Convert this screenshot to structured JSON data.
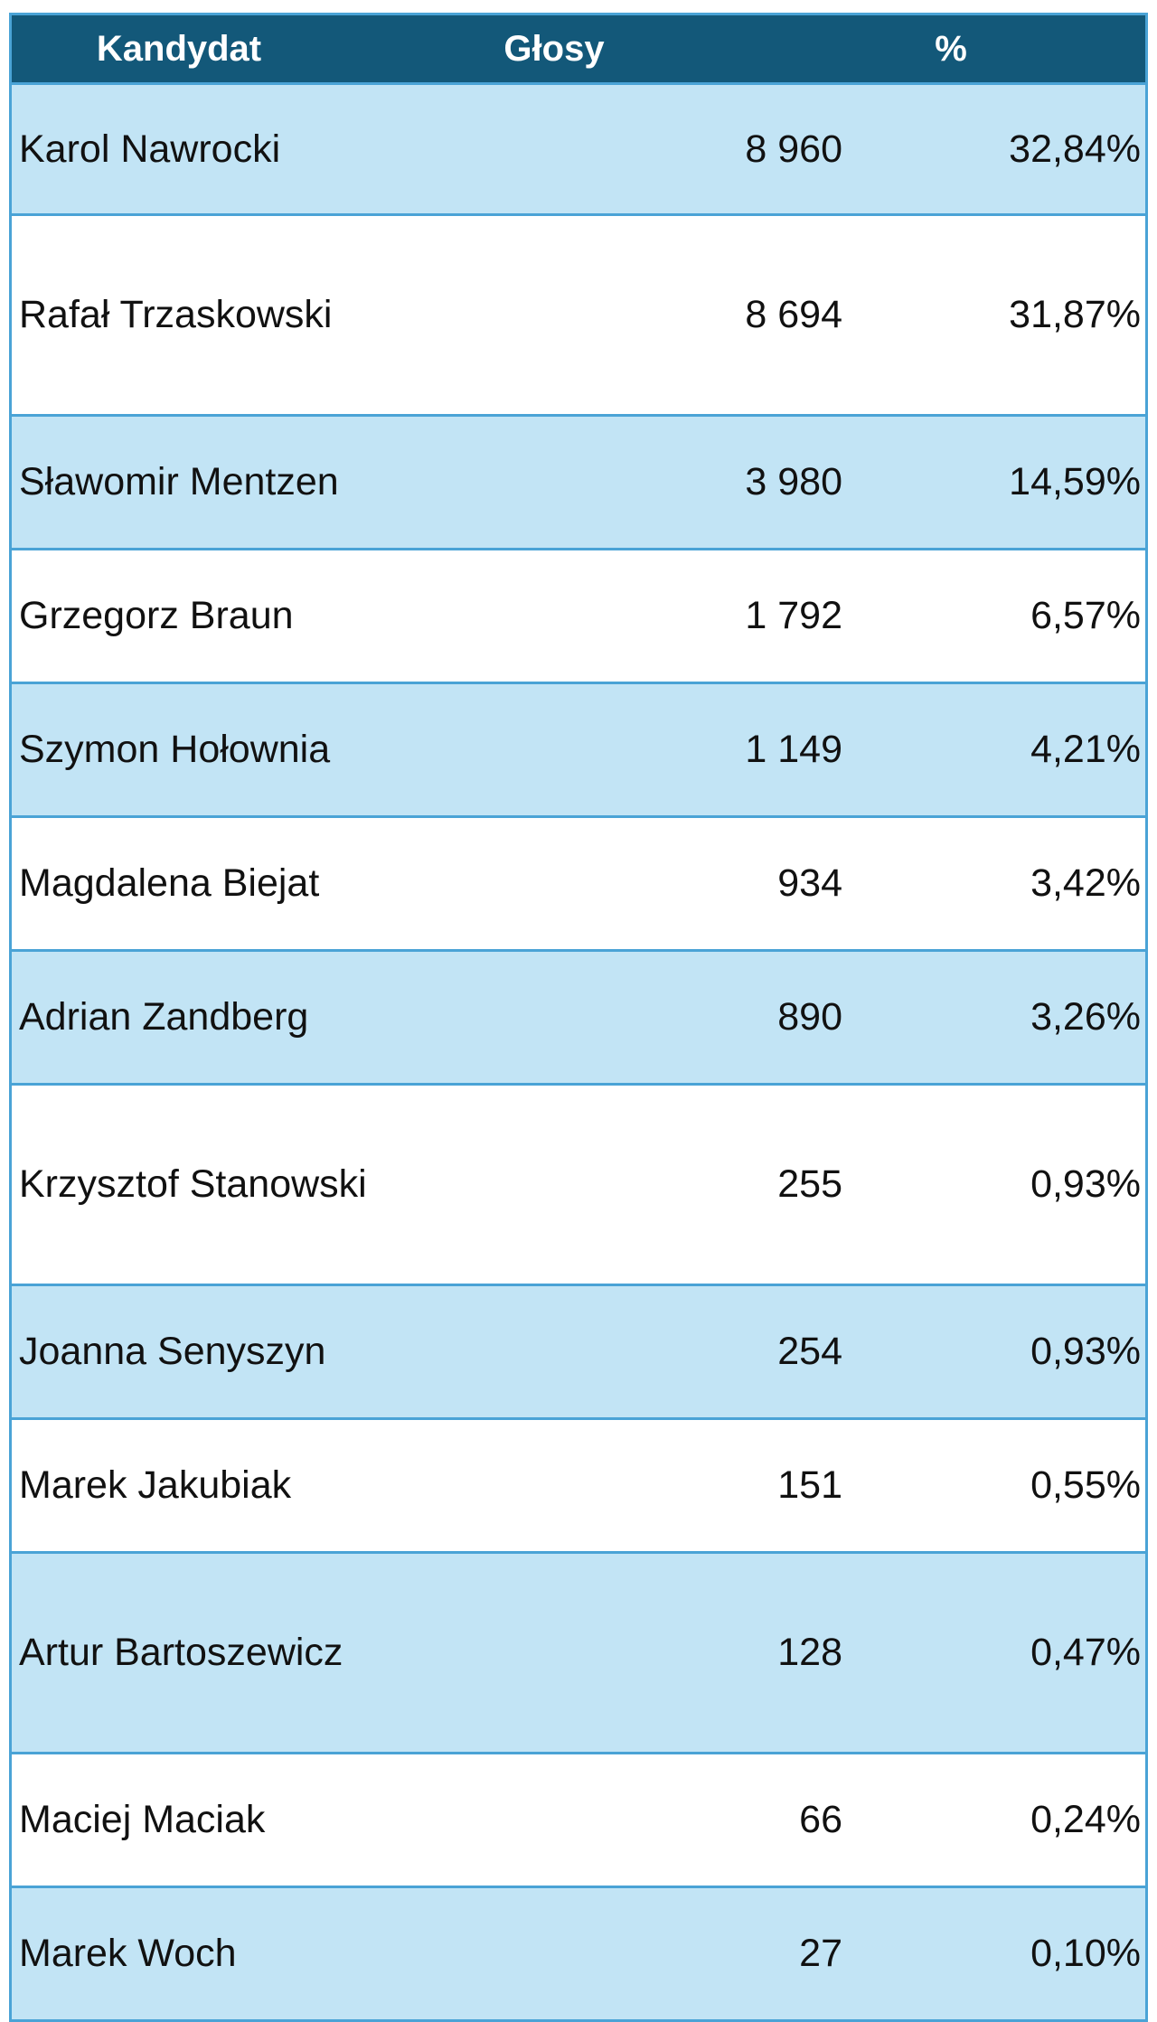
{
  "header": {
    "candidate": "Kandydat",
    "votes": "Głosy",
    "percent": "%"
  },
  "rows": [
    {
      "name": "Karol Nawrocki",
      "votes": "8 960",
      "percent": "32,84%"
    },
    {
      "name": "Rafał Trzaskowski",
      "votes": "8 694",
      "percent": "31,87%"
    },
    {
      "name": "Sławomir Mentzen",
      "votes": "3 980",
      "percent": "14,59%"
    },
    {
      "name": "Grzegorz Braun",
      "votes": "1 792",
      "percent": "6,57%"
    },
    {
      "name": "Szymon Hołownia",
      "votes": "1 149",
      "percent": "4,21%"
    },
    {
      "name": "Magdalena Biejat",
      "votes": "934",
      "percent": "3,42%"
    },
    {
      "name": "Adrian Zandberg",
      "votes": "890",
      "percent": "3,26%"
    },
    {
      "name": "Krzysztof Stanowski",
      "votes": "255",
      "percent": "0,93%"
    },
    {
      "name": "Joanna Senyszyn",
      "votes": "254",
      "percent": "0,93%"
    },
    {
      "name": "Marek Jakubiak",
      "votes": "151",
      "percent": "0,55%"
    },
    {
      "name": "Artur Bartoszewicz",
      "votes": "128",
      "percent": "0,47%"
    },
    {
      "name": "Maciej Maciak",
      "votes": "66",
      "percent": "0,24%"
    },
    {
      "name": "Marek Woch",
      "votes": "27",
      "percent": "0,10%"
    }
  ],
  "colors": {
    "header_bg": "#135879",
    "band_bg": "#c2e4f5",
    "border": "#4aa3d6"
  }
}
